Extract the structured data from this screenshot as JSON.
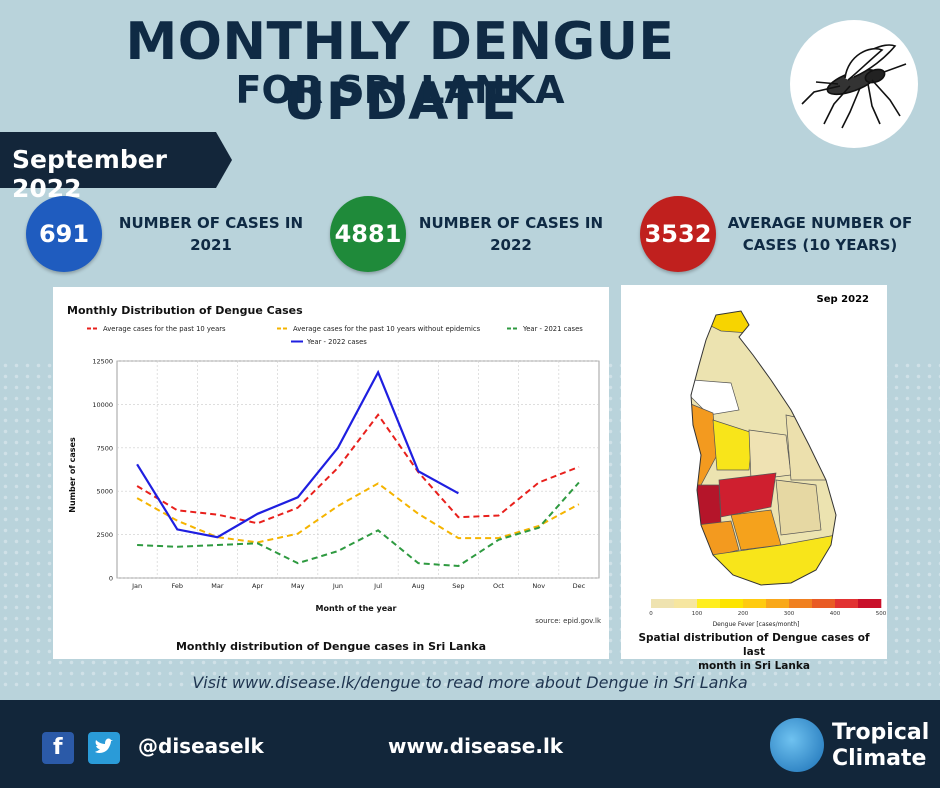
{
  "header": {
    "title_line1": "MONTHLY DENGUE UPDATE",
    "title_line2": "FOR SRI LANKA"
  },
  "period": {
    "label": "September 2022"
  },
  "stats": [
    {
      "value": "691",
      "label_line1": "NUMBER OF CASES IN",
      "label_line2": "2021",
      "color": "#1f5cbf"
    },
    {
      "value": "4881",
      "label_line1": "NUMBER OF CASES IN",
      "label_line2": "2022",
      "color": "#1f8a3a"
    },
    {
      "value": "3532",
      "label_line1": "AVERAGE NUMBER OF",
      "label_line2": "CASES (10 YEARS)",
      "color": "#c0201e"
    }
  ],
  "chart_data": {
    "type": "line",
    "title": "Monthly Distribution of Dengue Cases",
    "xlabel": "Month of the year",
    "ylabel": "Number of cases",
    "categories": [
      "Jan",
      "Feb",
      "Mar",
      "Apr",
      "May",
      "Jun",
      "Jul",
      "Aug",
      "Sep",
      "Oct",
      "Nov",
      "Dec"
    ],
    "ylim": [
      0,
      12500
    ],
    "yticks": [
      0,
      2500,
      5000,
      7500,
      10000,
      12500
    ],
    "ytick_labels": [
      "0",
      "2500",
      "5000",
      "7500",
      "10000",
      "12500"
    ],
    "grid": true,
    "legend_position": "top",
    "series": [
      {
        "name": "Average cases for  the past 10 years",
        "color": "#e8201c",
        "dashed": true,
        "values": [
          5300,
          3900,
          3650,
          3150,
          4050,
          6350,
          9400,
          6100,
          3500,
          3600,
          5500,
          6400
        ]
      },
      {
        "name": "Average cases for  the past 10 years without epidemics",
        "color": "#f5b400",
        "dashed": true,
        "values": [
          4600,
          3300,
          2350,
          2050,
          2550,
          4150,
          5450,
          3700,
          2300,
          2300,
          3000,
          4250
        ]
      },
      {
        "name": "Year - 2021 cases",
        "color": "#2e9a40",
        "dashed": true,
        "values": [
          1900,
          1800,
          1900,
          2000,
          850,
          1550,
          2750,
          850,
          691,
          2200,
          2900,
          5500
        ]
      },
      {
        "name": "Year - 2022 cases",
        "color": "#1f1fe0",
        "dashed": false,
        "values": [
          6550,
          2800,
          2350,
          3700,
          4650,
          7500,
          11850,
          6150,
          4881,
          null,
          null,
          null
        ]
      }
    ],
    "source_note": "source: epid.gov.lk",
    "caption": "Monthly  distribution of Dengue cases in Sri Lanka"
  },
  "map": {
    "month_label": "Sep 2022",
    "legend_title": "Dengue Fever [cases/month]",
    "legend_ticks": [
      "0",
      "100",
      "200",
      "300",
      "400",
      "500"
    ],
    "legend_colors": [
      "#efe3b0",
      "#f6e6a0",
      "#ffee20",
      "#fde400",
      "#ffcb10",
      "#f9a81a",
      "#f08020",
      "#e95b25",
      "#e23232",
      "#c9102a"
    ],
    "caption_line1": "Spatial distribution of Dengue cases of last",
    "caption_line2": "month in Sri Lanka"
  },
  "visit_text": "Visit www.disease.lk/dengue to read more about Dengue in Sri Lanka",
  "footer": {
    "handle": "@diseaselk",
    "website": "www.disease.lk",
    "brand_line1": "Tropical",
    "brand_line2": "Climate",
    "facebook_glyph": "f",
    "twitter_glyph": "t"
  }
}
